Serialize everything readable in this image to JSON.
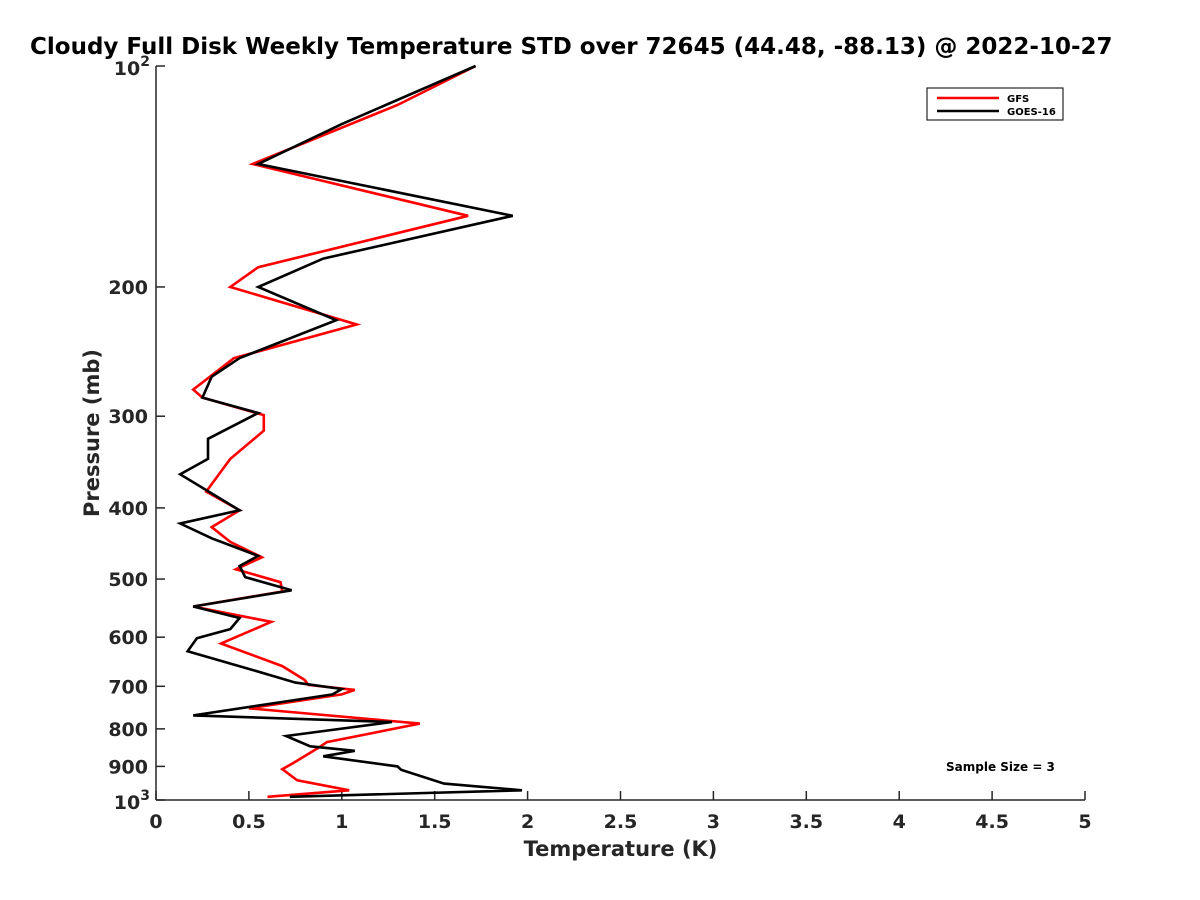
{
  "chart_data": {
    "type": "line",
    "title": "Cloudy Full Disk Weekly Temperature STD over 72645 (44.48, -88.13) @ 2022-10-27",
    "xlabel": "Temperature (K)",
    "ylabel": "Pressure (mb)",
    "xlim": [
      0,
      5
    ],
    "ylim": [
      100,
      1000
    ],
    "y_scale": "log",
    "y_reversed": true,
    "x_ticks": [
      0,
      0.5,
      1,
      1.5,
      2,
      2.5,
      3,
      3.5,
      4,
      4.5,
      5
    ],
    "x_tick_labels": [
      "0",
      "0.5",
      "1",
      "1.5",
      "2",
      "2.5",
      "3",
      "3.5",
      "4",
      "4.5",
      "5"
    ],
    "y_ticks": [
      100,
      200,
      300,
      400,
      500,
      600,
      700,
      800,
      900,
      1000
    ],
    "y_tick_labels": [
      {
        "base": "10",
        "exp": "2"
      },
      {
        "base": "200",
        "exp": ""
      },
      {
        "base": "300",
        "exp": ""
      },
      {
        "base": "400",
        "exp": ""
      },
      {
        "base": "500",
        "exp": ""
      },
      {
        "base": "600",
        "exp": ""
      },
      {
        "base": "700",
        "exp": ""
      },
      {
        "base": "800",
        "exp": ""
      },
      {
        "base": "900",
        "exp": ""
      },
      {
        "base": "10",
        "exp": "3"
      }
    ],
    "legend_position": "top-right",
    "grid": false,
    "series": [
      {
        "name": "GFS",
        "color": "#ff0000",
        "points": [
          [
            1.72,
            100
          ],
          [
            1.3,
            113
          ],
          [
            0.52,
            136
          ],
          [
            1.68,
            160
          ],
          [
            0.55,
            188
          ],
          [
            0.4,
            200
          ],
          [
            1.08,
            225
          ],
          [
            0.42,
            250
          ],
          [
            0.2,
            276
          ],
          [
            0.25,
            283
          ],
          [
            0.58,
            299
          ],
          [
            0.58,
            314
          ],
          [
            0.4,
            343
          ],
          [
            0.27,
            380
          ],
          [
            0.45,
            403
          ],
          [
            0.3,
            425
          ],
          [
            0.4,
            445
          ],
          [
            0.57,
            467
          ],
          [
            0.43,
            485
          ],
          [
            0.67,
            505
          ],
          [
            0.68,
            520
          ],
          [
            0.2,
            545
          ],
          [
            0.62,
            572
          ],
          [
            0.35,
            612
          ],
          [
            0.68,
            657
          ],
          [
            0.8,
            686
          ],
          [
            0.82,
            697
          ],
          [
            1.07,
            708
          ],
          [
            1.0,
            718
          ],
          [
            0.5,
            750
          ],
          [
            1.42,
            787
          ],
          [
            1.15,
            812
          ],
          [
            0.92,
            834
          ],
          [
            0.88,
            847
          ],
          [
            0.74,
            890
          ],
          [
            0.68,
            908
          ],
          [
            0.76,
            940
          ],
          [
            1.04,
            970
          ],
          [
            0.6,
            990
          ]
        ]
      },
      {
        "name": "GOES-16",
        "color": "#000000",
        "points": [
          [
            1.72,
            100
          ],
          [
            1.0,
            120
          ],
          [
            0.55,
            136
          ],
          [
            1.92,
            160
          ],
          [
            0.9,
            183
          ],
          [
            0.55,
            200
          ],
          [
            0.97,
            222
          ],
          [
            0.45,
            250
          ],
          [
            0.3,
            265
          ],
          [
            0.25,
            283
          ],
          [
            0.55,
            297
          ],
          [
            0.28,
            322
          ],
          [
            0.28,
            343
          ],
          [
            0.13,
            360
          ],
          [
            0.45,
            403
          ],
          [
            0.13,
            420
          ],
          [
            0.3,
            440
          ],
          [
            0.55,
            465
          ],
          [
            0.45,
            480
          ],
          [
            0.48,
            497
          ],
          [
            0.73,
            518
          ],
          [
            0.2,
            545
          ],
          [
            0.45,
            565
          ],
          [
            0.4,
            585
          ],
          [
            0.22,
            602
          ],
          [
            0.17,
            627
          ],
          [
            0.52,
            665
          ],
          [
            0.75,
            692
          ],
          [
            1.0,
            706
          ],
          [
            0.95,
            718
          ],
          [
            0.7,
            734
          ],
          [
            0.2,
            767
          ],
          [
            1.27,
            783
          ],
          [
            0.7,
            818
          ],
          [
            0.83,
            845
          ],
          [
            1.07,
            857
          ],
          [
            0.9,
            872
          ],
          [
            1.3,
            900
          ],
          [
            1.32,
            910
          ],
          [
            1.55,
            950
          ],
          [
            1.97,
            970
          ],
          [
            0.72,
            990
          ]
        ]
      }
    ],
    "annotations": [
      {
        "text": "Sample Size = 3",
        "position": "bottom-right"
      }
    ]
  }
}
